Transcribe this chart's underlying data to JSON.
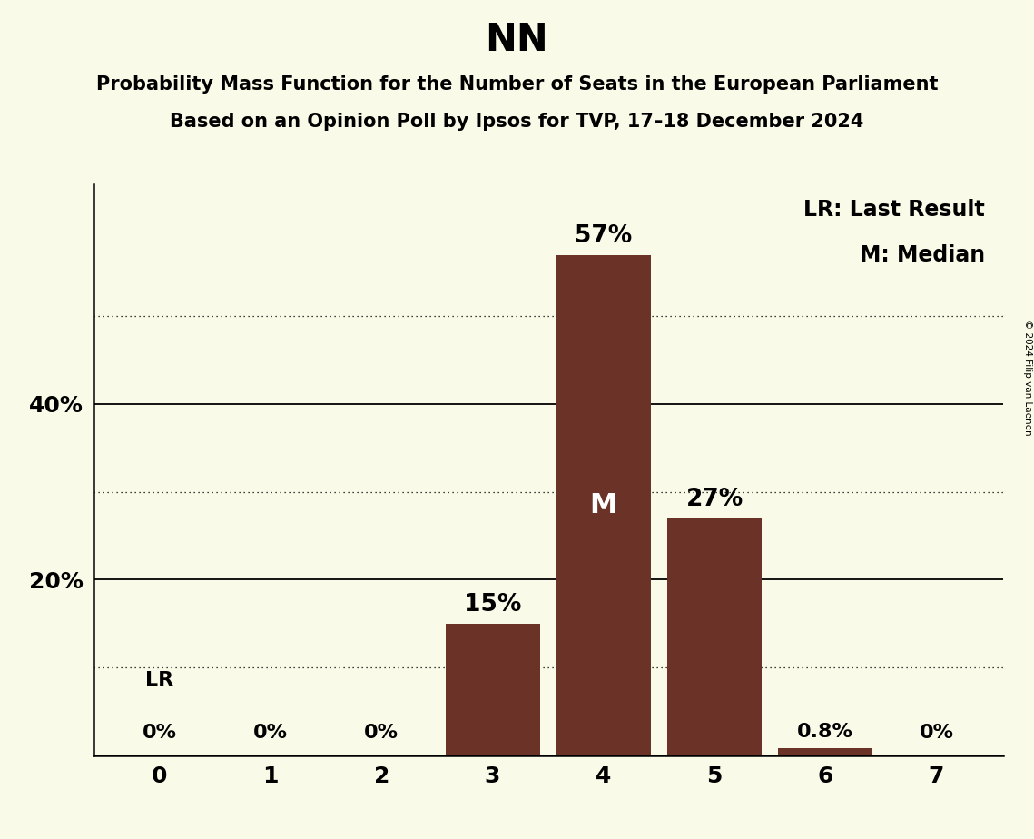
{
  "title": "NN",
  "subtitle1": "Probability Mass Function for the Number of Seats in the European Parliament",
  "subtitle2": "Based on an Opinion Poll by Ipsos for TVP, 17–18 December 2024",
  "copyright": "© 2024 Filip van Laenen",
  "categories": [
    0,
    1,
    2,
    3,
    4,
    5,
    6,
    7
  ],
  "values": [
    0.0,
    0.0,
    0.0,
    15.0,
    57.0,
    27.0,
    0.8,
    0.0
  ],
  "bar_color": "#6B3227",
  "background_color": "#FAFAE8",
  "median_bar": 4,
  "lr_bar": 0,
  "ysolid": [
    20,
    40
  ],
  "ydotted": [
    10,
    30,
    50
  ],
  "ylim": [
    0,
    65
  ],
  "legend_lr": "LR: Last Result",
  "legend_m": "M: Median",
  "bar_labels": [
    "0%",
    "0%",
    "0%",
    "15%",
    "57%",
    "27%",
    "0.8%",
    "0%"
  ],
  "title_fontsize": 30,
  "subtitle_fontsize": 15,
  "label_fontsize": 16,
  "tick_fontsize": 18,
  "legend_fontsize": 15
}
